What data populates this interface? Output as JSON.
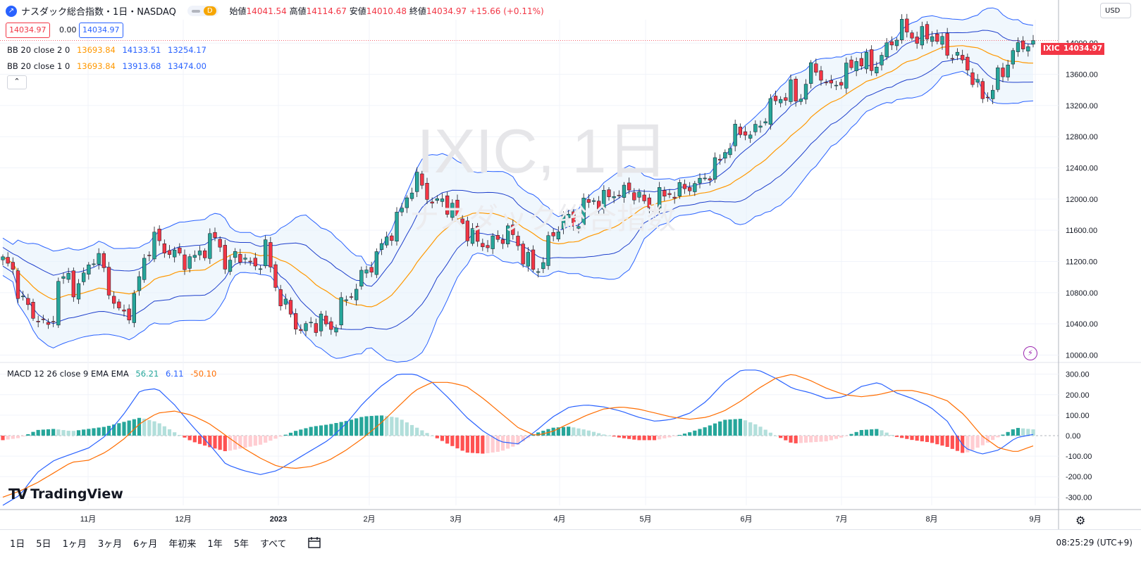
{
  "header": {
    "title": "ナスダック総合指数・1日・NASDAQ",
    "toggle_label": "D",
    "ohlc": [
      {
        "label": "始値",
        "value": "14041.54"
      },
      {
        "label": "高値",
        "value": "14114.67"
      },
      {
        "label": "安値",
        "value": "14010.48"
      },
      {
        "label": "終値",
        "value": "14034.97"
      },
      {
        "label": "",
        "value": "+15.66 (+0.11%)"
      }
    ],
    "sell_price": "14034.97",
    "spread": "0.00",
    "buy_price": "14034.97"
  },
  "indicators": {
    "bb2": {
      "label": "BB 20 close 2 0",
      "basis": "13693.84",
      "upper": "14133.51",
      "lower": "13254.17"
    },
    "bb1": {
      "label": "BB 20 close 1 0",
      "basis": "13693.84",
      "upper": "13913.68",
      "lower": "13474.00"
    },
    "macd": {
      "label": "MACD 12 26 close 9 EMA EMA",
      "hist": "56.21",
      "macd": "6.11",
      "signal": "-50.10"
    }
  },
  "watermark": {
    "symbol": "IXIC, 1日",
    "name": "ナスダック総合指数"
  },
  "currency": "USD",
  "last_price_tag": {
    "symbol": "IXIC",
    "price": "14034.97"
  },
  "brand": "TradingView",
  "colors": {
    "up": "#26a69a",
    "down": "#f23645",
    "basis": "#ff9800",
    "band": "#2962ff",
    "macd": "#2962ff",
    "signal": "#ff6d00",
    "fill": "#e3f0fc"
  },
  "bottom_bar": {
    "ranges": [
      "1日",
      "5日",
      "1ヶ月",
      "3ヶ月",
      "6ヶ月",
      "年初来",
      "1年",
      "5年",
      "すべて"
    ],
    "time": "08:25:29 (UTC+9)"
  },
  "chart_data": {
    "type": "candlestick",
    "price_axis": {
      "ticks": [
        "14000.00",
        "13600.00",
        "13200.00",
        "12800.00",
        "12400.00",
        "12000.00",
        "11600.00",
        "11200.00",
        "10800.00",
        "10400.00",
        "10000.00"
      ],
      "range": [
        9950,
        14300
      ]
    },
    "macd_axis": {
      "ticks": [
        "300.00",
        "200.00",
        "100.00",
        "0.00",
        "-100.00",
        "-200.00",
        "-300.00"
      ],
      "range": [
        -340,
        340
      ]
    },
    "x_axis": {
      "labels": [
        "11月",
        "12月",
        "2023",
        "2月",
        "3月",
        "4月",
        "5月",
        "6月",
        "7月",
        "8月",
        "9月"
      ]
    },
    "price_close_path": [
      11200,
      11100,
      10700,
      10550,
      10450,
      10300,
      10950,
      11000,
      10800,
      11150,
      11300,
      11000,
      10600,
      10500,
      10700,
      11200,
      11500,
      11400,
      11300,
      11250,
      11200,
      11300,
      11450,
      11500,
      11050,
      11350,
      11200,
      11100,
      11400,
      10900,
      10650,
      10450,
      10300,
      10400,
      10450,
      10300,
      10600,
      10750,
      10950,
      11100,
      11300,
      11500,
      11700,
      12000,
      12250,
      12150,
      11900,
      12000,
      11850,
      11700,
      11500,
      11450,
      11400,
      11500,
      11600,
      11400,
      11200,
      11050,
      11350,
      11600,
      11800,
      11650,
      11900,
      12000,
      11950,
      12100,
      12050,
      12150,
      12000,
      11900,
      12000,
      12100,
      12050,
      12200,
      12150,
      12300,
      12400,
      12600,
      12800,
      12900,
      12800,
      13000,
      13200,
      13300,
      13400,
      13250,
      13600,
      13700,
      13400,
      13500,
      13600,
      13800,
      13750,
      13700,
      13850,
      14050,
      14200,
      14100,
      14050,
      14150,
      14000,
      13900,
      13800,
      13700,
      13400,
      13300,
      13500,
      13700,
      13900,
      14000,
      14035
    ],
    "macd_values": [
      -340,
      -290,
      -180,
      -120,
      -90,
      -60,
      0,
      100,
      220,
      230,
      150,
      50,
      -40,
      -140,
      -170,
      -190,
      -170,
      -120,
      -70,
      -20,
      60,
      160,
      240,
      300,
      300,
      260,
      180,
      90,
      20,
      -30,
      -40,
      20,
      90,
      140,
      150,
      140,
      120,
      90,
      70,
      80,
      110,
      170,
      260,
      320,
      320,
      280,
      230,
      210,
      180,
      190,
      240,
      260,
      210,
      180,
      140,
      70,
      -60,
      -90,
      -70,
      -10,
      6
    ],
    "signal_values": [
      -300,
      -270,
      -230,
      -180,
      -130,
      -120,
      -80,
      -20,
      60,
      110,
      120,
      100,
      60,
      0,
      -60,
      -110,
      -150,
      -160,
      -150,
      -120,
      -70,
      -10,
      60,
      140,
      220,
      260,
      260,
      240,
      180,
      110,
      40,
      0,
      20,
      60,
      100,
      130,
      140,
      130,
      110,
      90,
      80,
      90,
      120,
      170,
      230,
      280,
      300,
      270,
      230,
      200,
      190,
      200,
      220,
      220,
      200,
      170,
      100,
      0,
      -60,
      -80,
      -50
    ]
  }
}
